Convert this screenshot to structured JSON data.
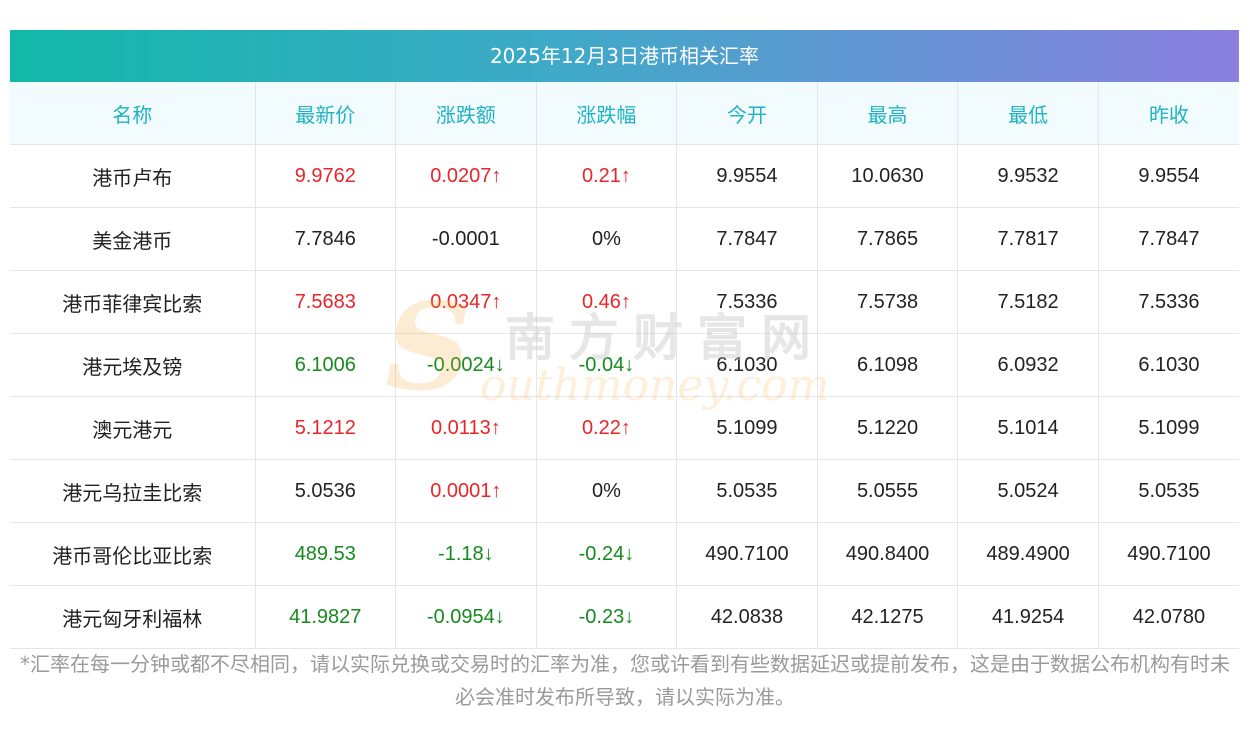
{
  "title": "2025年12月3日港币相关汇率",
  "headers": [
    "名称",
    "最新价",
    "涨跌额",
    "涨跌幅",
    "今开",
    "最高",
    "最低",
    "昨收"
  ],
  "rows": [
    {
      "name": "港币卢布",
      "latest": "9.9762",
      "change": "0.0207↑",
      "pct": "0.21↑",
      "trend": "up",
      "open": "9.9554",
      "high": "10.0630",
      "low": "9.9532",
      "prev": "9.9554"
    },
    {
      "name": "美金港币",
      "latest": "7.7846",
      "change": "-0.0001",
      "pct": "0%",
      "trend": "flat",
      "open": "7.7847",
      "high": "7.7865",
      "low": "7.7817",
      "prev": "7.7847"
    },
    {
      "name": "港币菲律宾比索",
      "latest": "7.5683",
      "change": "0.0347↑",
      "pct": "0.46↑",
      "trend": "up",
      "open": "7.5336",
      "high": "7.5738",
      "low": "7.5182",
      "prev": "7.5336"
    },
    {
      "name": "港元埃及镑",
      "latest": "6.1006",
      "change": "-0.0024↓",
      "pct": "-0.04↓",
      "trend": "down",
      "open": "6.1030",
      "high": "6.1098",
      "low": "6.0932",
      "prev": "6.1030"
    },
    {
      "name": "澳元港元",
      "latest": "5.1212",
      "change": "0.0113↑",
      "pct": "0.22↑",
      "trend": "up",
      "open": "5.1099",
      "high": "5.1220",
      "low": "5.1014",
      "prev": "5.1099"
    },
    {
      "name": "港元乌拉圭比索",
      "latest": "5.0536",
      "change": "0.0001↑",
      "pct": "0%",
      "trend": "mixed",
      "open": "5.0535",
      "high": "5.0555",
      "low": "5.0524",
      "prev": "5.0535"
    },
    {
      "name": "港币哥伦比亚比索",
      "latest": "489.53",
      "change": "-1.18↓",
      "pct": "-0.24↓",
      "trend": "down",
      "open": "490.7100",
      "high": "490.8400",
      "low": "489.4900",
      "prev": "490.7100"
    },
    {
      "name": "港元匈牙利福林",
      "latest": "41.9827",
      "change": "-0.0954↓",
      "pct": "-0.23↓",
      "trend": "down",
      "open": "42.0838",
      "high": "42.1275",
      "low": "41.9254",
      "prev": "42.0780"
    }
  ],
  "note": "*汇率在每一分钟或都不尽相同，请以实际兑换或交易时的汇率为准，您或许看到有些数据延迟或提前发布，这是由于数据公布机构有时未必会准时发布所导致，请以实际为准。",
  "watermark": {
    "cn": "南方财富网",
    "en": "outhmoney.com",
    "s": "S"
  },
  "colors": {
    "up": "#e8262a",
    "down": "#178a1f",
    "header_text": "#1fb3c4",
    "gradient_start": "#12b8a8",
    "gradient_end": "#8b7fe0"
  }
}
